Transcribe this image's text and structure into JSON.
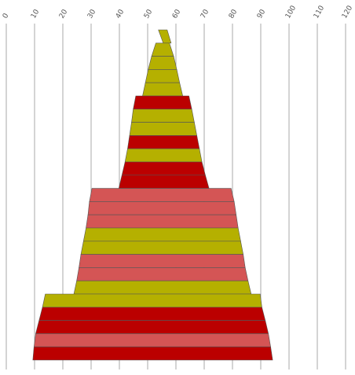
{
  "chart_data": {
    "type": "area",
    "orientation": "horizontal-stacked-bands",
    "title": "",
    "xlabel": "",
    "ylabel": "",
    "xlim": [
      0,
      120
    ],
    "x_ticks": [
      0,
      10,
      20,
      30,
      40,
      50,
      60,
      70,
      80,
      90,
      100,
      110,
      120
    ],
    "x_tick_labels": [
      "0",
      "10",
      "20",
      "30",
      "40",
      "50",
      "60",
      "70",
      "80",
      "90",
      "100",
      "110",
      "120"
    ],
    "grid": "vertical",
    "legend": "none",
    "colors": {
      "olive": "#b5b000",
      "red": "#bb0000",
      "salmon": "#d45555"
    },
    "bands": [
      {
        "start": [
          53.8,
          55.5
        ],
        "end": [
          56.9,
          58.3
        ],
        "color": "olive"
      },
      {
        "start": [
          52.9,
          51.4
        ],
        "end": [
          57.7,
          59.2
        ],
        "color": "olive"
      },
      {
        "start": [
          51.4,
          50.2
        ],
        "end": [
          59.2,
          60.3
        ],
        "color": "olive"
      },
      {
        "start": [
          50.2,
          49.2
        ],
        "end": [
          60.3,
          61.3
        ],
        "color": "olive"
      },
      {
        "start": [
          49.2,
          48.2
        ],
        "end": [
          61.3,
          62.4
        ],
        "color": "olive"
      },
      {
        "start": [
          45.8,
          44.9
        ],
        "end": [
          64.6,
          65.6
        ],
        "color": "red"
      },
      {
        "start": [
          44.9,
          44.3
        ],
        "end": [
          65.6,
          66.5
        ],
        "color": "olive"
      },
      {
        "start": [
          44.3,
          43.6
        ],
        "end": [
          66.5,
          67.4
        ],
        "color": "olive"
      },
      {
        "start": [
          43.6,
          42.9
        ],
        "end": [
          67.4,
          68.3
        ],
        "color": "red"
      },
      {
        "start": [
          42.9,
          42.0
        ],
        "end": [
          68.3,
          69.2
        ],
        "color": "olive"
      },
      {
        "start": [
          42.0,
          40.9
        ],
        "end": [
          69.2,
          70.4
        ],
        "color": "red"
      },
      {
        "start": [
          40.9,
          39.8
        ],
        "end": [
          70.4,
          71.7
        ],
        "color": "red"
      },
      {
        "start": [
          30.3,
          29.4
        ],
        "end": [
          79.5,
          80.6
        ],
        "color": "salmon"
      },
      {
        "start": [
          29.4,
          28.9
        ],
        "end": [
          80.6,
          81.3
        ],
        "color": "salmon"
      },
      {
        "start": [
          28.9,
          28.2
        ],
        "end": [
          81.3,
          82.0
        ],
        "color": "salmon"
      },
      {
        "start": [
          28.2,
          27.3
        ],
        "end": [
          82.0,
          82.9
        ],
        "color": "olive"
      },
      {
        "start": [
          27.3,
          26.4
        ],
        "end": [
          82.9,
          83.8
        ],
        "color": "olive"
      },
      {
        "start": [
          26.4,
          25.7
        ],
        "end": [
          83.8,
          84.5
        ],
        "color": "salmon"
      },
      {
        "start": [
          25.7,
          24.9
        ],
        "end": [
          84.5,
          85.5
        ],
        "color": "salmon"
      },
      {
        "start": [
          24.9,
          23.9
        ],
        "end": [
          85.5,
          86.6
        ],
        "color": "olive"
      },
      {
        "start": [
          13.8,
          12.8
        ],
        "end": [
          89.8,
          90.4
        ],
        "color": "olive"
      },
      {
        "start": [
          12.8,
          11.6
        ],
        "end": [
          90.4,
          91.6
        ],
        "color": "red"
      },
      {
        "start": [
          11.6,
          10.4
        ],
        "end": [
          91.6,
          92.7
        ],
        "color": "red"
      },
      {
        "start": [
          10.4,
          9.8
        ],
        "end": [
          92.7,
          93.5
        ],
        "color": "salmon"
      },
      {
        "start": [
          9.8,
          9.4
        ],
        "end": [
          93.5,
          94.2
        ],
        "color": "red"
      }
    ]
  }
}
